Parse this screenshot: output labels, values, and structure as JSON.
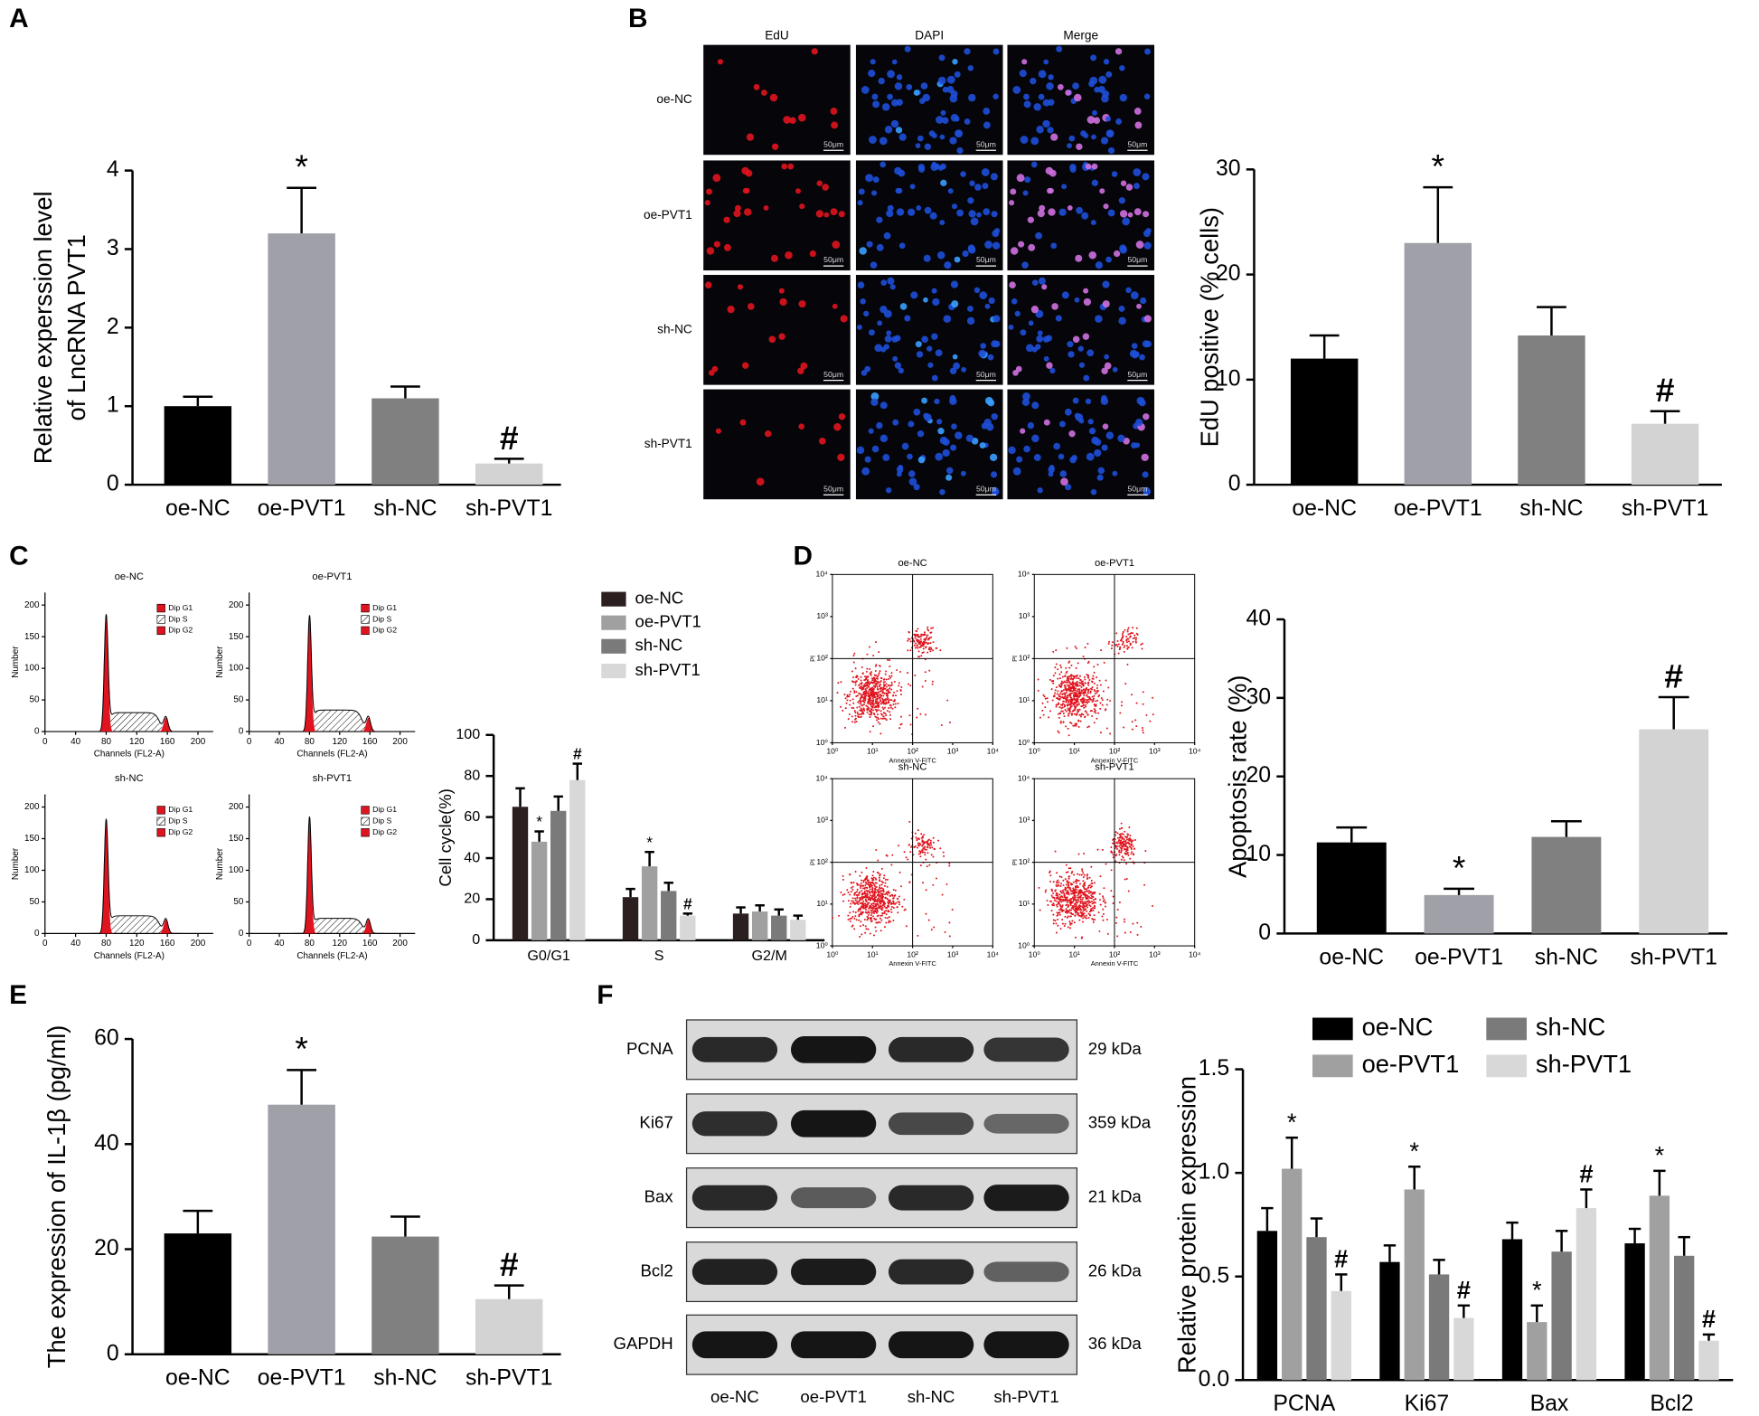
{
  "chart_data": [
    {
      "type": "bar",
      "panel": "A",
      "ylabel": [
        "Relative experssion level",
        "of LncRNA PVT1"
      ],
      "categories": [
        "oe-NC",
        "oe-PVT1",
        "sh-NC",
        "sh-PVT1"
      ],
      "values": [
        1.0,
        3.2,
        1.1,
        0.27
      ],
      "errors": [
        0.12,
        0.58,
        0.15,
        0.06
      ],
      "significance": [
        null,
        "*",
        null,
        "#"
      ],
      "colors": [
        "#000000",
        "#a0a0a8",
        "#808080",
        "#d3d3d3"
      ],
      "ylim": [
        0,
        4
      ],
      "yticks": [
        0,
        1,
        2,
        3,
        4
      ]
    },
    {
      "type": "micrograph",
      "panel": "B",
      "columns": [
        "EdU",
        "DAPI",
        "Merge"
      ],
      "rows": [
        "oe-NC",
        "oe-PVT1",
        "sh-NC",
        "sh-PVT1"
      ],
      "scale_bar": "50μm"
    },
    {
      "type": "bar",
      "ylabel": "EdU positive (% cells)",
      "categories": [
        "oe-NC",
        "oe-PVT1",
        "sh-NC",
        "sh-PVT1"
      ],
      "values": [
        12,
        23,
        14.2,
        5.8
      ],
      "errors": [
        2.2,
        5.3,
        2.7,
        1.2
      ],
      "significance": [
        null,
        "*",
        null,
        "#"
      ],
      "colors": [
        "#000000",
        "#a0a0a8",
        "#808080",
        "#d3d3d3"
      ],
      "ylim": [
        0,
        30
      ],
      "yticks": [
        0,
        10,
        20,
        30
      ]
    },
    {
      "type": "flow_histogram",
      "panel": "C",
      "titles": [
        "oe-NC",
        "oe-PVT1",
        "sh-NC",
        "sh-PVT1"
      ],
      "legend": [
        "Dip G1",
        "Dip S",
        "Dip G2"
      ],
      "xlabel": "Channels (FL2-A)",
      "ylabel": "Number",
      "xlim": [
        0,
        220
      ],
      "ylim": [
        0,
        220
      ],
      "xticks": [
        0,
        40,
        80,
        120,
        160,
        200
      ],
      "yticks": [
        0,
        50,
        100,
        150,
        200
      ]
    },
    {
      "type": "grouped_bar",
      "ylabel": "Cell cycle(%)",
      "categories": [
        "G0/G1",
        "S",
        "G2/M"
      ],
      "series": [
        {
          "name": "oe-NC",
          "color": "#2b1f1f",
          "values": [
            65,
            21,
            13
          ],
          "errors": [
            9,
            4,
            3
          ],
          "significance": [
            null,
            null,
            null
          ]
        },
        {
          "name": "oe-PVT1",
          "color": "#a0a0a0",
          "values": [
            48,
            36,
            14
          ],
          "errors": [
            5,
            7,
            3
          ],
          "significance": [
            "*",
            "*",
            null
          ]
        },
        {
          "name": "sh-NC",
          "color": "#7a7a7a",
          "values": [
            63,
            24,
            12
          ],
          "errors": [
            7,
            4,
            3
          ],
          "significance": [
            null,
            null,
            null
          ]
        },
        {
          "name": "sh-PVT1",
          "color": "#d8d8d8",
          "values": [
            78,
            12,
            10
          ],
          "errors": [
            8,
            1,
            2
          ],
          "significance": [
            "#",
            "#",
            null
          ]
        }
      ],
      "ylim": [
        0,
        100
      ],
      "yticks": [
        0,
        20,
        40,
        60,
        80,
        100
      ],
      "legend": "right"
    },
    {
      "type": "flow_scatter",
      "panel": "D",
      "titles": [
        "oe-NC",
        "oe-PVT1",
        "sh-NC",
        "sh-PVT1"
      ],
      "xlabel": "Annexin V-FITC",
      "ylabel": "PI",
      "log": true,
      "xlim": [
        1,
        10000
      ],
      "ylim": [
        1,
        10000
      ],
      "xticks": [
        {
          "value": 1,
          "label": "10⁰"
        },
        {
          "value": 10,
          "label": "10¹"
        },
        {
          "value": 100,
          "label": "10²"
        },
        {
          "value": 1000,
          "label": "10³"
        },
        {
          "value": 10000,
          "label": "10⁴"
        }
      ],
      "yticks": [
        {
          "value": 1,
          "label": "10⁰"
        },
        {
          "value": 10,
          "label": "10¹"
        },
        {
          "value": 100,
          "label": "10²"
        },
        {
          "value": 1000,
          "label": "10³"
        },
        {
          "value": 10000,
          "label": "10⁴"
        }
      ]
    },
    {
      "type": "bar",
      "ylabel": "Apoptosis rate (%)",
      "categories": [
        "oe-NC",
        "oe-PVT1",
        "sh-NC",
        "sh-PVT1"
      ],
      "values": [
        11.6,
        4.9,
        12.3,
        26
      ],
      "errors": [
        1.9,
        0.8,
        2.0,
        4.1
      ],
      "significance": [
        null,
        "*",
        null,
        "#"
      ],
      "colors": [
        "#000000",
        "#a0a0a8",
        "#808080",
        "#d3d3d3"
      ],
      "ylim": [
        0,
        40
      ],
      "yticks": [
        0,
        10,
        20,
        30,
        40
      ]
    },
    {
      "type": "bar",
      "panel": "E",
      "ylabel": "The expression of IL-1β (pg/ml)",
      "categories": [
        "oe-NC",
        "oe-PVT1",
        "sh-NC",
        "sh-PVT1"
      ],
      "values": [
        23,
        47.5,
        22.4,
        10.5
      ],
      "errors": [
        4.3,
        6.6,
        3.8,
        2.6
      ],
      "significance": [
        null,
        "*",
        null,
        "#"
      ],
      "colors": [
        "#000000",
        "#a0a0a8",
        "#808080",
        "#d3d3d3"
      ],
      "ylim": [
        0,
        60
      ],
      "yticks": [
        0,
        20,
        40,
        60
      ]
    },
    {
      "type": "western_blot",
      "panel": "F",
      "proteins": [
        "PCNA",
        "Ki67",
        "Bax",
        "Bcl2",
        "GAPDH"
      ],
      "sizes": [
        "29 kDa",
        "359 kDa",
        "21 kDa",
        "26 kDa",
        "36 kDa"
      ],
      "lanes": [
        "oe-NC",
        "oe-PVT1",
        "sh-NC",
        "sh-PVT1"
      ]
    },
    {
      "type": "grouped_bar",
      "ylabel": "Relative protein expression",
      "categories": [
        "PCNA",
        "Ki67",
        "Bax",
        "Bcl2"
      ],
      "series": [
        {
          "name": "oe-NC",
          "color": "#000000",
          "values": [
            0.72,
            0.57,
            0.68,
            0.66
          ],
          "errors": [
            0.11,
            0.08,
            0.08,
            0.07
          ],
          "significance": [
            null,
            null,
            null,
            null
          ]
        },
        {
          "name": "oe-PVT1",
          "color": "#a0a0a0",
          "values": [
            1.02,
            0.92,
            0.28,
            0.89
          ],
          "errors": [
            0.15,
            0.11,
            0.08,
            0.12
          ],
          "significance": [
            "*",
            "*",
            "*",
            "*"
          ]
        },
        {
          "name": "sh-NC",
          "color": "#7a7a7a",
          "values": [
            0.69,
            0.51,
            0.62,
            0.6
          ],
          "errors": [
            0.09,
            0.07,
            0.1,
            0.09
          ],
          "significance": [
            null,
            null,
            null,
            null
          ]
        },
        {
          "name": "sh-PVT1",
          "color": "#d8d8d8",
          "values": [
            0.43,
            0.3,
            0.83,
            0.19
          ],
          "errors": [
            0.08,
            0.06,
            0.09,
            0.03
          ],
          "significance": [
            "#",
            "#",
            "#",
            "#"
          ]
        }
      ],
      "ylim": [
        0,
        1.5
      ],
      "yticks": [
        {
          "value": 0,
          "label": "0.0"
        },
        {
          "value": 0.5,
          "label": "0.5"
        },
        {
          "value": 1,
          "label": "1.0"
        },
        {
          "value": 1.5,
          "label": "1.5"
        }
      ],
      "legend": "top"
    }
  ]
}
